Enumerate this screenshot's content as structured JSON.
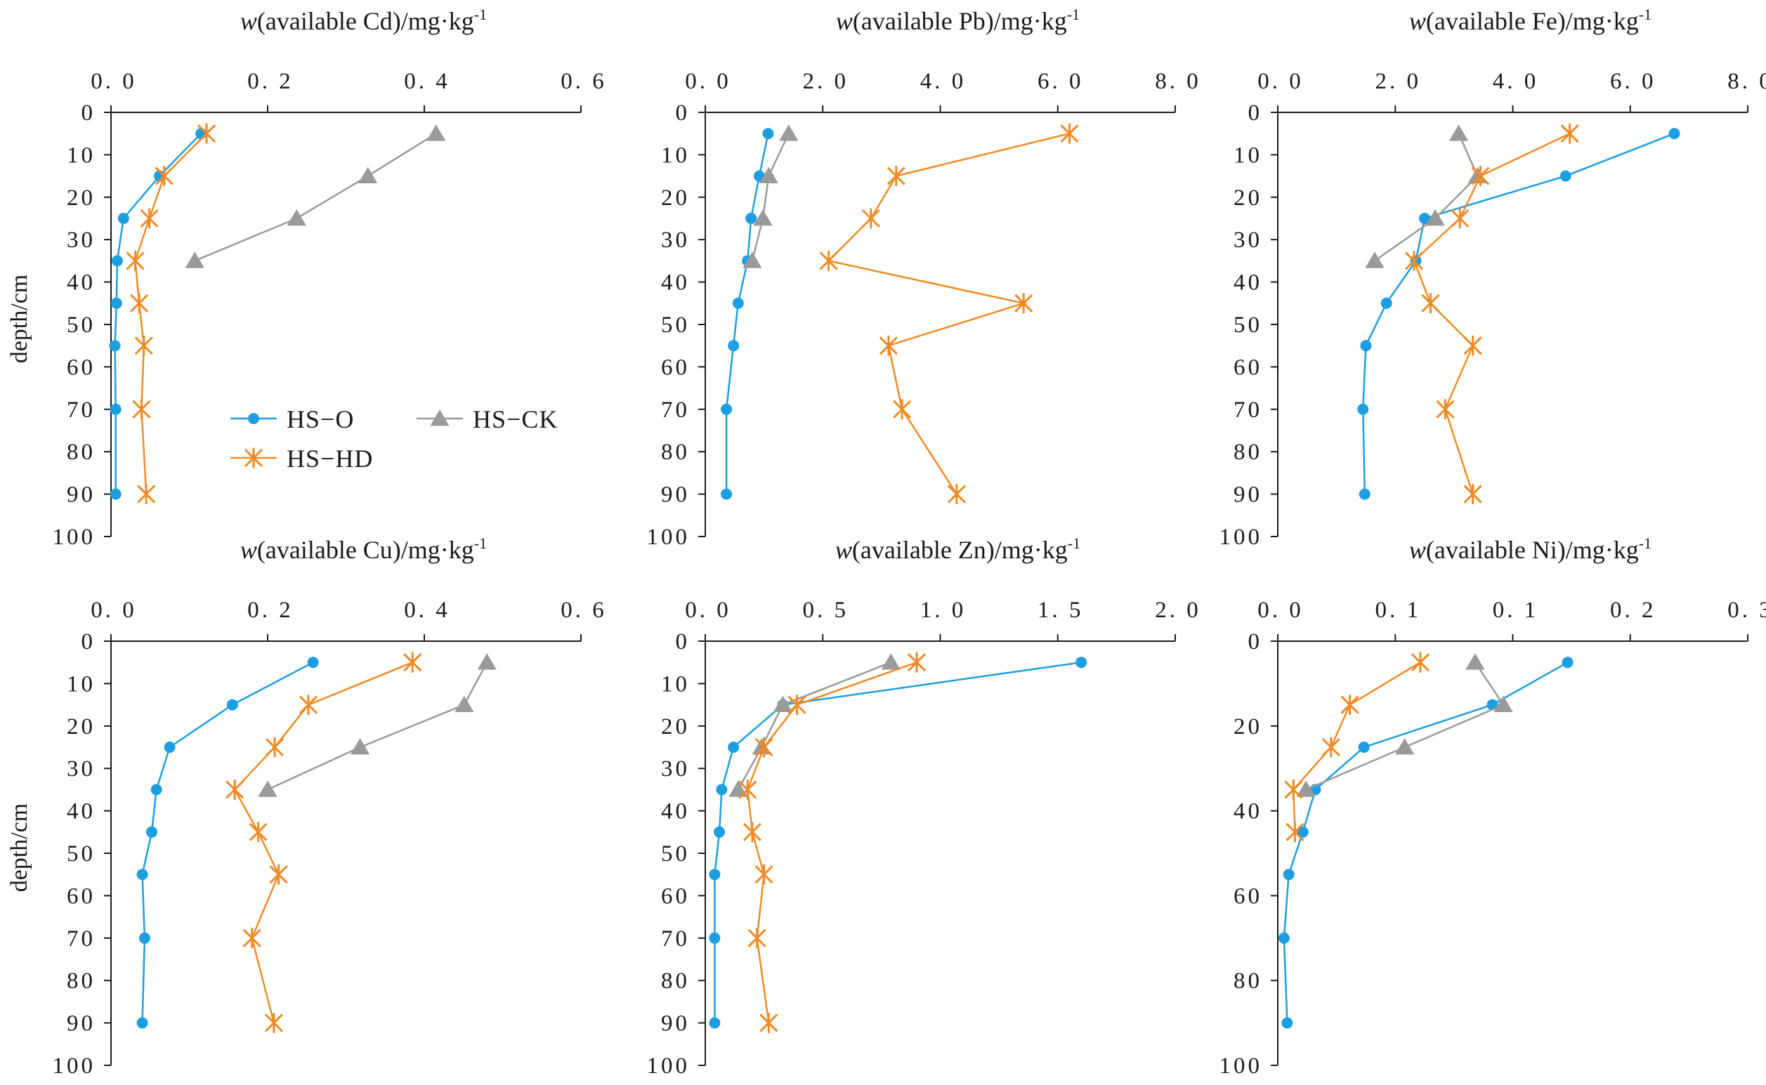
{
  "colors": {
    "HS-O": "#1c9ee0",
    "HS-CK": "#9a9a9a",
    "HS-HD": "#f08a24",
    "axis": "#1a1a1a"
  },
  "legend": {
    "labels": [
      "HS−O",
      "HS−CK",
      "HS−HD"
    ],
    "markers": [
      "circle",
      "triangle",
      "asterisk"
    ]
  },
  "chart_data": [
    {
      "type": "line",
      "id": "cd",
      "title": {
        "prefix": "w",
        "rest": "(available  Cd)/mg·kg",
        "sup": "-1"
      },
      "ylabel": "depth/cm",
      "xlim": [
        0,
        0.6
      ],
      "xticks": [
        "0. 0",
        "0. 2",
        "0. 4",
        "0. 6"
      ],
      "ylim": [
        0,
        100
      ],
      "yticks": [
        "0",
        "10",
        "20",
        "30",
        "40",
        "50",
        "60",
        "70",
        "80",
        "90",
        "100"
      ],
      "series": [
        {
          "name": "HS-O",
          "x": [
            0.115,
            0.062,
            0.016,
            0.008,
            0.007,
            0.005,
            0.006,
            0.006
          ],
          "y": [
            5,
            15,
            25,
            35,
            45,
            55,
            70,
            90
          ]
        },
        {
          "name": "HS-CK",
          "x": [
            0.415,
            0.328,
            0.237,
            0.107
          ],
          "y": [
            5,
            15,
            25,
            35
          ]
        },
        {
          "name": "HS-HD",
          "x": [
            0.122,
            0.068,
            0.049,
            0.031,
            0.036,
            0.042,
            0.039,
            0.045
          ],
          "y": [
            5,
            15,
            25,
            35,
            45,
            55,
            70,
            90
          ]
        }
      ]
    },
    {
      "type": "line",
      "id": "pb",
      "title": {
        "prefix": "w",
        "rest": "(available  Pb)/mg·kg",
        "sup": "-1"
      },
      "ylabel": "",
      "xlim": [
        0,
        8
      ],
      "xticks": [
        "0. 0",
        "2. 0",
        "4. 0",
        "6. 0",
        "8. 0"
      ],
      "ylim": [
        0,
        100
      ],
      "yticks": [
        "0",
        "10",
        "20",
        "30",
        "40",
        "50",
        "60",
        "70",
        "80",
        "90",
        "100"
      ],
      "series": [
        {
          "name": "HS-O",
          "x": [
            1.07,
            0.92,
            0.78,
            0.72,
            0.56,
            0.48,
            0.36,
            0.36
          ],
          "y": [
            5,
            15,
            25,
            35,
            45,
            55,
            70,
            90
          ]
        },
        {
          "name": "HS-CK",
          "x": [
            1.42,
            1.08,
            0.98,
            0.8
          ],
          "y": [
            5,
            15,
            25,
            35
          ]
        },
        {
          "name": "HS-HD",
          "x": [
            6.2,
            3.25,
            2.82,
            2.1,
            5.42,
            3.12,
            3.35,
            4.28
          ],
          "y": [
            5,
            15,
            25,
            35,
            45,
            55,
            70,
            90
          ]
        }
      ]
    },
    {
      "type": "line",
      "id": "fe",
      "title": {
        "prefix": "w",
        "rest": "(available  Fe)/mg·kg",
        "sup": "-1"
      },
      "ylabel": "",
      "xlim": [
        0,
        8
      ],
      "xticks": [
        "0. 0",
        "2. 0",
        "4. 0",
        "6. 0",
        "8. 0"
      ],
      "ylim": [
        0,
        100
      ],
      "yticks": [
        "0",
        "10",
        "20",
        "30",
        "40",
        "50",
        "60",
        "70",
        "80",
        "90",
        "100"
      ],
      "series": [
        {
          "name": "HS-O",
          "x": [
            6.75,
            4.9,
            2.5,
            2.35,
            1.85,
            1.5,
            1.45,
            1.48
          ],
          "y": [
            5,
            15,
            25,
            35,
            45,
            55,
            70,
            90
          ]
        },
        {
          "name": "HS-CK",
          "x": [
            3.08,
            3.4,
            2.68,
            1.65
          ],
          "y": [
            5,
            15,
            25,
            35
          ]
        },
        {
          "name": "HS-HD",
          "x": [
            4.97,
            3.45,
            3.1,
            2.32,
            2.6,
            3.32,
            2.85,
            3.32
          ],
          "y": [
            5,
            15,
            25,
            35,
            45,
            55,
            70,
            90
          ]
        }
      ]
    },
    {
      "type": "line",
      "id": "cu",
      "title": {
        "prefix": "w",
        "rest": "(available  Cu)/mg·kg",
        "sup": "-1"
      },
      "ylabel": "depth/cm",
      "xlim": [
        0,
        0.6
      ],
      "xticks": [
        "0. 0",
        "0. 2",
        "0. 4",
        "0. 6"
      ],
      "ylim": [
        0,
        100
      ],
      "yticks": [
        "0",
        "10",
        "20",
        "30",
        "40",
        "50",
        "60",
        "70",
        "80",
        "90",
        "100"
      ],
      "series": [
        {
          "name": "HS-O",
          "x": [
            0.258,
            0.155,
            0.075,
            0.058,
            0.052,
            0.04,
            0.043,
            0.04
          ],
          "y": [
            5,
            15,
            25,
            35,
            45,
            55,
            70,
            90
          ]
        },
        {
          "name": "HS-CK",
          "x": [
            0.48,
            0.451,
            0.318,
            0.2
          ],
          "y": [
            5,
            15,
            25,
            35
          ]
        },
        {
          "name": "HS-HD",
          "x": [
            0.385,
            0.252,
            0.209,
            0.158,
            0.188,
            0.214,
            0.18,
            0.208
          ],
          "y": [
            5,
            15,
            25,
            35,
            45,
            55,
            70,
            90
          ]
        }
      ]
    },
    {
      "type": "line",
      "id": "zn",
      "title": {
        "prefix": "w",
        "rest": "(available  Zn)/mg·kg",
        "sup": "-1"
      },
      "ylabel": "",
      "xlim": [
        0,
        2
      ],
      "xticks": [
        "0. 0",
        "0. 5",
        "1. 0",
        "1. 5",
        "2. 0"
      ],
      "ylim": [
        0,
        100
      ],
      "yticks": [
        "0",
        "10",
        "20",
        "30",
        "40",
        "50",
        "60",
        "70",
        "80",
        "90",
        "100"
      ],
      "series": [
        {
          "name": "HS-O",
          "x": [
            1.6,
            0.33,
            0.12,
            0.07,
            0.06,
            0.04,
            0.04,
            0.04
          ],
          "y": [
            5,
            15,
            25,
            35,
            45,
            55,
            70,
            90
          ]
        },
        {
          "name": "HS-CK",
          "x": [
            0.79,
            0.33,
            0.24,
            0.14
          ],
          "y": [
            5,
            15,
            25,
            35
          ]
        },
        {
          "name": "HS-HD",
          "x": [
            0.9,
            0.39,
            0.25,
            0.18,
            0.2,
            0.25,
            0.22,
            0.27
          ],
          "y": [
            5,
            15,
            25,
            35,
            45,
            55,
            70,
            90
          ]
        }
      ]
    },
    {
      "type": "line",
      "id": "ni",
      "title": {
        "prefix": "w",
        "rest": "(available  Ni)/mg·kg",
        "sup": "-1"
      },
      "ylabel": "",
      "xlim": [
        0,
        0.3
      ],
      "xticks": [
        "0. 0",
        "0. 1",
        "0. 1",
        "0. 2",
        "0. 3"
      ],
      "ylim": [
        0,
        100
      ],
      "yticks": [
        "0",
        "20",
        "40",
        "60",
        "80",
        "100"
      ],
      "series": [
        {
          "name": "HS-O",
          "x": [
            0.185,
            0.137,
            0.055,
            0.024,
            0.016,
            0.007,
            0.004,
            0.006
          ],
          "y": [
            5,
            15,
            25,
            35,
            45,
            55,
            70,
            90
          ]
        },
        {
          "name": "HS-CK",
          "x": [
            0.126,
            0.144,
            0.081,
            0.018
          ],
          "y": [
            5,
            15,
            25,
            35
          ]
        },
        {
          "name": "HS-HD",
          "x": [
            0.091,
            0.046,
            0.034,
            0.01,
            0.011
          ],
          "y": [
            5,
            15,
            25,
            35,
            45
          ]
        }
      ]
    }
  ]
}
